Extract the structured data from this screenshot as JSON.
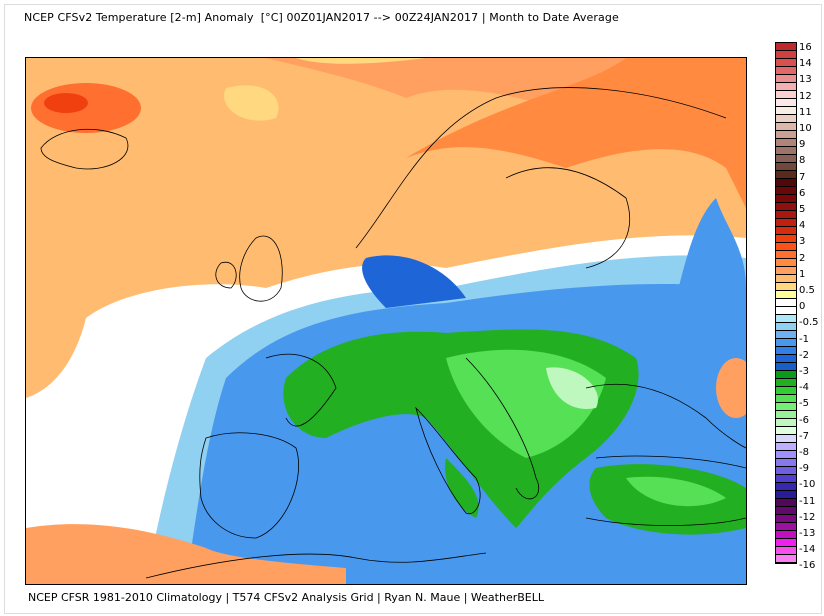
{
  "title": "NCEP CFSv2 Temperature [2-m] Anomaly  [°C] 00Z01JAN2017 --> 00Z24JAN2017 | Month to Date Average",
  "footer": "NCEP CFSR 1981-2010 Climatology | T574 CFSv2 Analysis Grid | Ryan N. Maue | WeatherBELL",
  "colorbar": {
    "labels": [
      "16",
      "14",
      "13",
      "12",
      "11",
      "10",
      "9",
      "8",
      "7",
      "6",
      "5",
      "4",
      "3",
      "2",
      "1",
      "0.5",
      "0",
      "-0.5",
      "-1",
      "-2",
      "-3",
      "-4",
      "-5",
      "-6",
      "-7",
      "-8",
      "-9",
      "-10",
      "-11",
      "-12",
      "-13",
      "-14",
      "-16"
    ],
    "colors": [
      "#c0282d",
      "#d04040",
      "#d85050",
      "#e06868",
      "#ea9090",
      "#f3b0b0",
      "#fbd0d0",
      "#fde8e8",
      "#f8eee4",
      "#ecd0c4",
      "#dcb8ac",
      "#c8a094",
      "#b08478",
      "#9c7468",
      "#886058",
      "#70483c",
      "#5a2a1c",
      "#500808",
      "#680808",
      "#7a0808",
      "#901010",
      "#a81810",
      "#c02010",
      "#d82c10",
      "#f04010",
      "#ff5018",
      "#ff7030",
      "#ff8a40",
      "#ffa060",
      "#ffbb70",
      "#ffd880",
      "#ffff99",
      "#ffffff",
      "#ffffff",
      "#aee8f8",
      "#90d0f0",
      "#70b0f0",
      "#4898ee",
      "#3080e8",
      "#1e66d8",
      "#1860c8",
      "#0a9a1c",
      "#22b022",
      "#33cc33",
      "#55e055",
      "#77ee77",
      "#99f099",
      "#bff8bf",
      "#e0ffe0",
      "#d8d8ff",
      "#bcb0ff",
      "#a090ff",
      "#8878ee",
      "#7060dd",
      "#5040cc",
      "#3828b0",
      "#281c98",
      "#500858",
      "#620a6a",
      "#7a0a80",
      "#9c12a0",
      "#c010c0",
      "#ee20ee",
      "#f550ec",
      "#f880f0"
    ]
  },
  "map_colors": {
    "warm": "#ffbb70",
    "warm2": "#ffa060",
    "hot": "#ff7030",
    "neutral": "#ffffff",
    "cool": "#90d0f0",
    "blue": "#4898ee",
    "deep": "#1e66d8",
    "green": "#22b022",
    "lgreen": "#55e055",
    "pale": "#ffd880"
  }
}
